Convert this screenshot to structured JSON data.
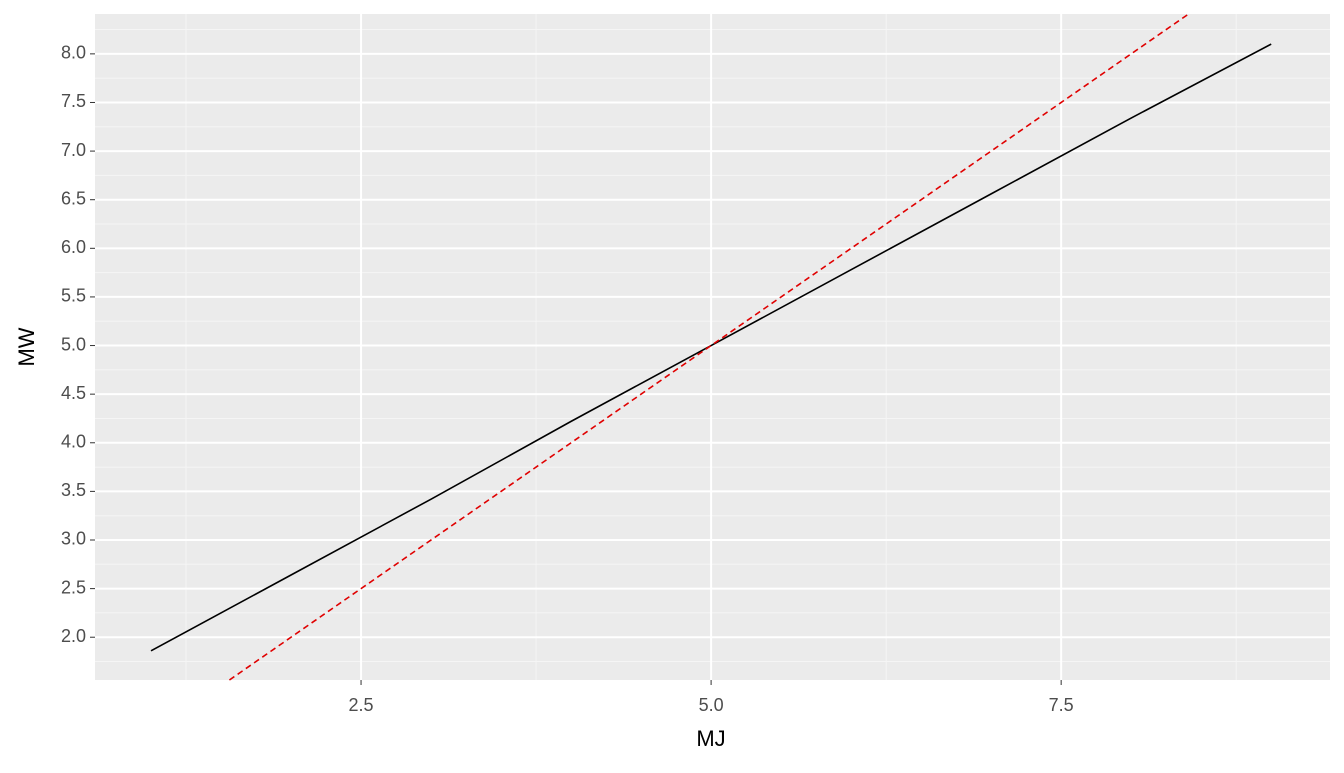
{
  "chart_data": {
    "type": "line",
    "x_label": "MJ",
    "y_label": "MW",
    "series": [
      {
        "color": "#000000",
        "dash": "solid",
        "x": [
          1,
          2,
          3,
          4,
          5,
          6,
          7,
          8,
          9
        ],
        "values": [
          1.86,
          2.64,
          3.42,
          4.22,
          5.0,
          5.78,
          6.56,
          7.34,
          8.1
        ]
      },
      {
        "color": "#e00000",
        "dash": "dashed",
        "x": [
          1.56,
          8.41
        ],
        "values": [
          1.56,
          8.41
        ]
      }
    ],
    "xlim": [
      0.6,
      9.42
    ],
    "ylim": [
      1.56,
      8.41
    ],
    "xticks": [
      2.5,
      {
        "value": 5,
        "label": "5.0"
      },
      7.5
    ],
    "yticks": [
      {
        "value": 2,
        "label": "2.0"
      },
      2.5,
      {
        "value": 3,
        "label": "3.0"
      },
      3.5,
      {
        "value": 4,
        "label": "4.0"
      },
      4.5,
      {
        "value": 5,
        "label": "5.0"
      },
      5.5,
      {
        "value": 6,
        "label": "6.0"
      },
      6.5,
      {
        "value": 7,
        "label": "7.0"
      },
      7.5,
      {
        "value": 8,
        "label": "8.0"
      }
    ],
    "grid": true
  }
}
